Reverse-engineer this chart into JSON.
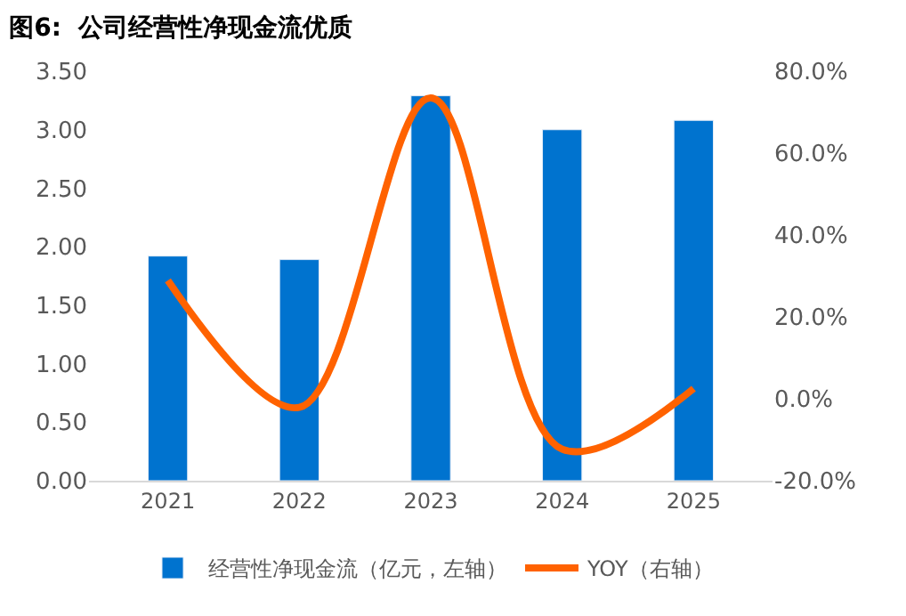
{
  "chart_data": {
    "type": "bar",
    "title": "图6:  公司经营性净现金流优质",
    "categories": [
      "2021",
      "2022",
      "2023",
      "2024",
      "2025"
    ],
    "series": [
      {
        "name": "经营性净现金流（亿元，左轴）",
        "color": "#0073cf",
        "values": [
          1.92,
          1.89,
          3.29,
          3.0,
          3.08
        ]
      },
      {
        "name": "YOY（右轴）",
        "type": "line",
        "axis": "y2",
        "color": "#ff6200",
        "values": [
          28.9,
          -2.1,
          73.5,
          -12.3,
          2.5
        ]
      }
    ],
    "ylim": [
      0,
      3.5
    ],
    "yticks": [
      {
        "value": 0,
        "label": "0.00"
      },
      {
        "value": 0.5,
        "label": "0.50"
      },
      {
        "value": 1,
        "label": "1.00"
      },
      {
        "value": 1.5,
        "label": "1.50"
      },
      {
        "value": 2,
        "label": "2.00"
      },
      {
        "value": 2.5,
        "label": "2.50"
      },
      {
        "value": 3,
        "label": "3.00"
      },
      {
        "value": 3.5,
        "label": "3.50"
      }
    ],
    "y2lim": [
      -20,
      80
    ],
    "y2ticks": [
      {
        "value": -20,
        "label": "-20.0%"
      },
      {
        "value": 0,
        "label": "0.0%"
      },
      {
        "value": 20,
        "label": "20.0%"
      },
      {
        "value": 40,
        "label": "40.0%"
      },
      {
        "value": 60,
        "label": "60.0%"
      },
      {
        "value": 80,
        "label": "80.0%"
      }
    ],
    "legend": "bottom",
    "marker": "none"
  }
}
